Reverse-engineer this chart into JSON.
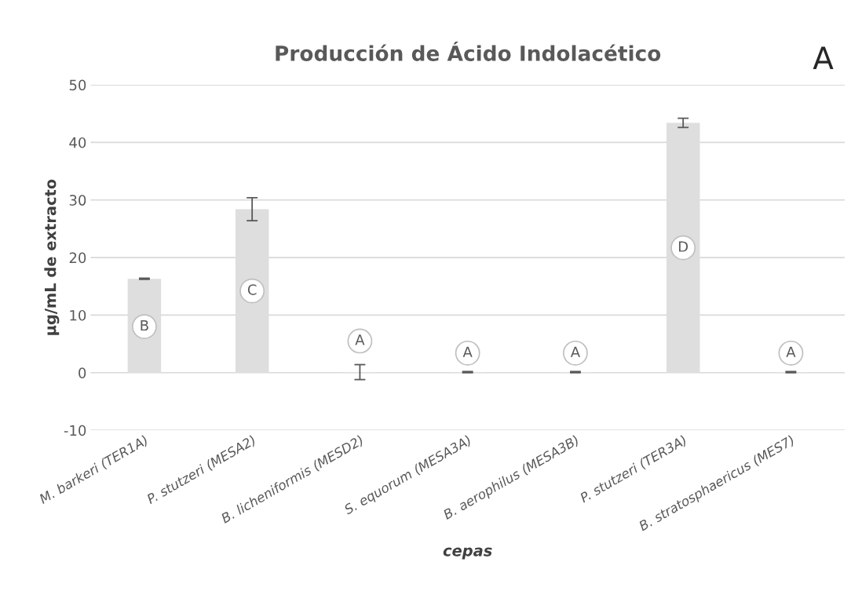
{
  "chart_data": {
    "type": "bar",
    "title": "Producción de Ácido Indolacético",
    "xlabel": "cepas",
    "ylabel": "µg/mL de extracto",
    "categories": [
      "M. barkeri (TER1A)",
      "P. stutzeri (MESA2)",
      "B. licheniformis (MESD2)",
      "S. equorum (MESA3A)",
      "B. aerophilus (MESA3B)",
      "P. stutzeri (TER3A)",
      "B. stratosphaericus (MES7)"
    ],
    "values": [
      16.3,
      28.4,
      0.1,
      0.1,
      0.1,
      43.4,
      0.1
    ],
    "errors": [
      0.1,
      2,
      1.3,
      0.1,
      0.1,
      0.8,
      0.1
    ],
    "color": "#dedede",
    "ylim": [
      -10,
      50
    ],
    "yticks": [
      -10,
      0,
      10,
      20,
      30,
      40,
      50
    ],
    "grid": "y",
    "annotations": [
      "A",
      {
        "text": "B",
        "x": "M. barkeri (TER1A)",
        "y": 8
      },
      {
        "text": "C",
        "x": "P. stutzeri (MESA2)",
        "y": 14.2
      },
      {
        "text": "A",
        "x": "B. licheniformis (MESD2)",
        "y": 5.5
      },
      {
        "text": "A",
        "x": "S. equorum (MESA3A)",
        "y": 3.4
      },
      {
        "text": "A",
        "x": "B. aerophilus (MESA3B)",
        "y": 3.4
      },
      {
        "text": "D",
        "x": "P. stutzeri (TER3A)",
        "y": 21.7
      },
      {
        "text": "A",
        "x": "B. stratosphaericus (MES7)",
        "y": 3.4
      }
    ]
  }
}
